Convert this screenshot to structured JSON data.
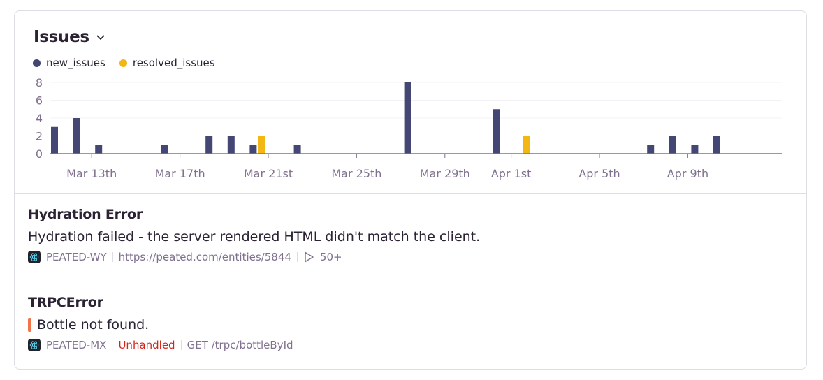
{
  "header": {
    "title": "Issues",
    "chevron_icon": "chevron-down-icon"
  },
  "colors": {
    "new_issues": "#444674",
    "resolved_issues": "#f2b712",
    "unhandled": "#d4241a",
    "level_bar": "#f2744a"
  },
  "chart_data": {
    "type": "bar",
    "legend": [
      "new_issues",
      "resolved_issues"
    ],
    "legend_placement": "top-left",
    "x_start": "Mar 11",
    "days": 31,
    "ylim": [
      0,
      8
    ],
    "yticks": [
      "0",
      "2",
      "4",
      "6",
      "8"
    ],
    "xticks": [
      {
        "label": "Mar 13th",
        "day": 2
      },
      {
        "label": "Mar 17th",
        "day": 6
      },
      {
        "label": "Mar 21st",
        "day": 10
      },
      {
        "label": "Mar 25th",
        "day": 14
      },
      {
        "label": "Mar 29th",
        "day": 18
      },
      {
        "label": "Apr 1st",
        "day": 21
      },
      {
        "label": "Apr 5th",
        "day": 25
      },
      {
        "label": "Apr 9th",
        "day": 29
      }
    ],
    "series": [
      {
        "name": "new_issues",
        "values": [
          3,
          4,
          1,
          0,
          0,
          1,
          0,
          2,
          2,
          1,
          0,
          1,
          0,
          0,
          0,
          0,
          8,
          0,
          0,
          0,
          5,
          0,
          0,
          0,
          0,
          0,
          0,
          1,
          2,
          1,
          2
        ]
      },
      {
        "name": "resolved_issues",
        "values": [
          0,
          0,
          0,
          0,
          0,
          0,
          0,
          0,
          0,
          2,
          0,
          0,
          0,
          0,
          0,
          0,
          0,
          0,
          0,
          0,
          0,
          2,
          0,
          0,
          0,
          0,
          0,
          0,
          0,
          0,
          0
        ]
      }
    ],
    "grid": true
  },
  "issues": [
    {
      "title": "Hydration Error",
      "message": "Hydration failed - the server rendered HTML didn't match the client.",
      "project": "PEATED-WY",
      "url": "https://peated.com/entities/5844",
      "replays": "50+"
    },
    {
      "title": "TRPCError",
      "message": "Bottle not found.",
      "project": "PEATED-MX",
      "handled": "Unhandled",
      "transaction": "GET /trpc/bottleById"
    }
  ]
}
